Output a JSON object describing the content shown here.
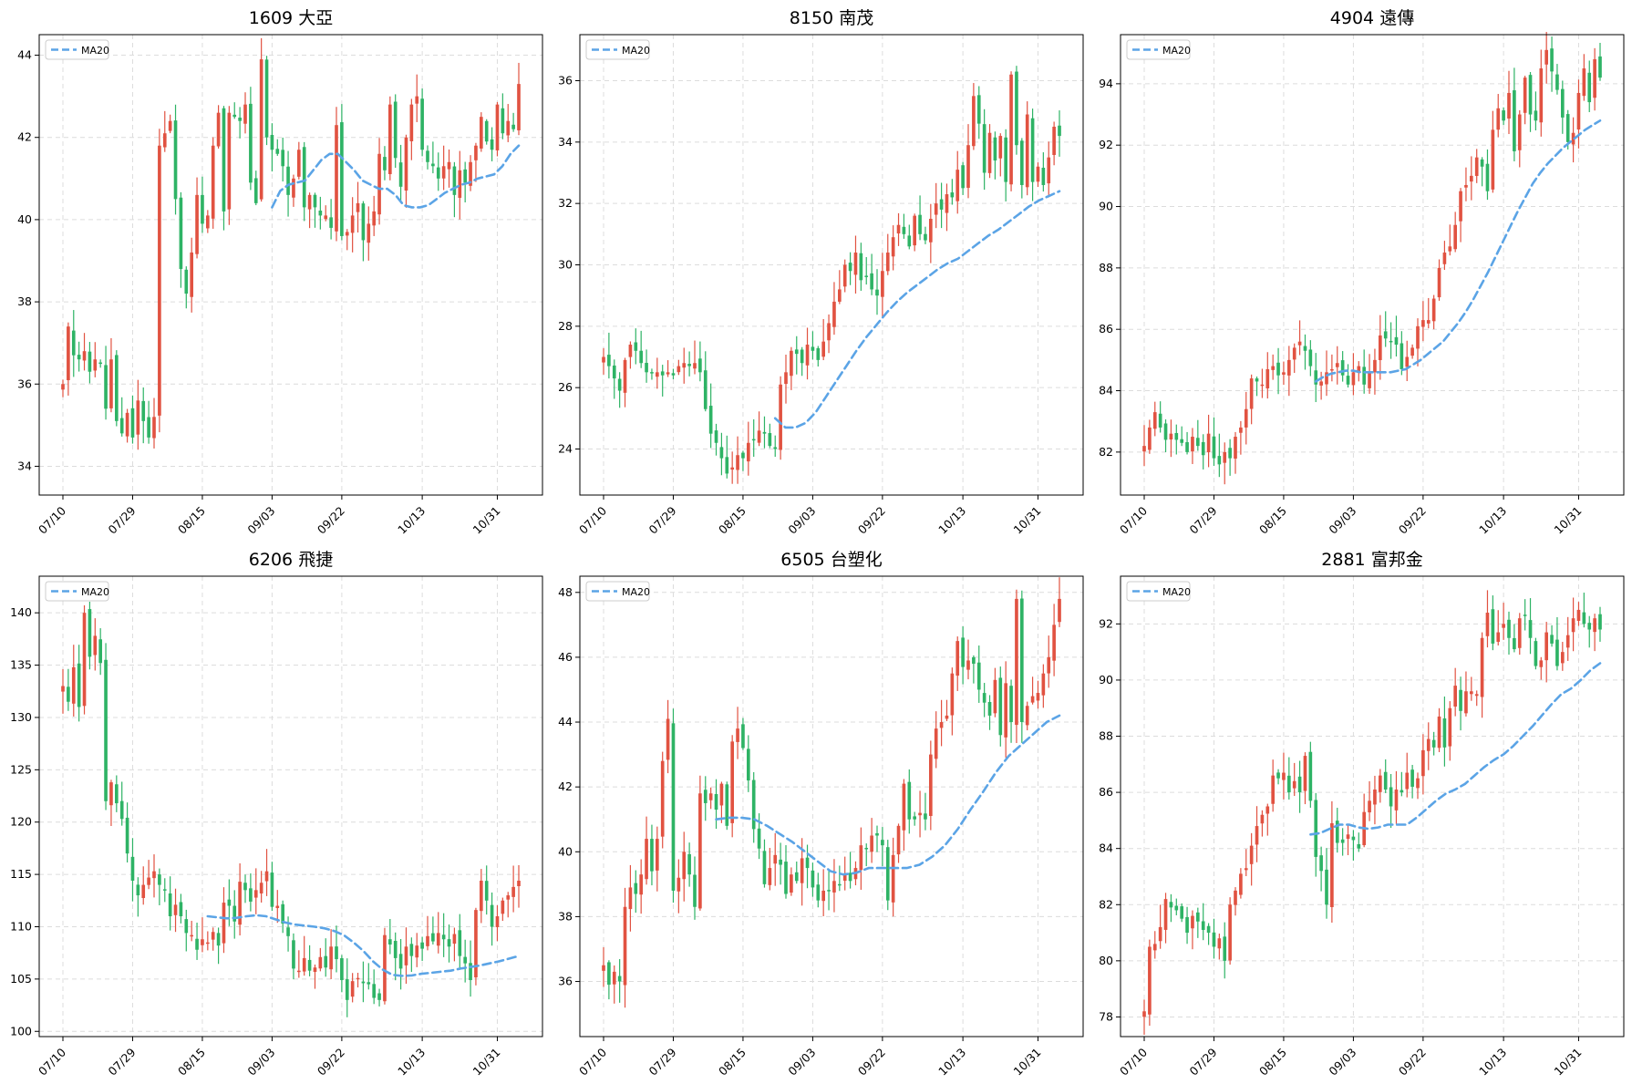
{
  "colors": {
    "up": "#e15241",
    "down": "#2eb365",
    "ma": "#5ba4e6",
    "grid": "#dcdcdc",
    "axis": "#000000"
  },
  "x_dates": [
    "07/10",
    "07/11",
    "07/14",
    "07/15",
    "07/16",
    "07/17",
    "07/18",
    "07/21",
    "07/22",
    "07/23",
    "07/24",
    "07/25",
    "07/28",
    "07/29",
    "07/30",
    "07/31",
    "08/01",
    "08/04",
    "08/05",
    "08/06",
    "08/07",
    "08/08",
    "08/11",
    "08/12",
    "08/13",
    "08/14",
    "08/15",
    "08/18",
    "08/19",
    "08/20",
    "08/21",
    "08/22",
    "08/25",
    "08/26",
    "08/27",
    "08/28",
    "08/29",
    "09/01",
    "09/02",
    "09/03",
    "09/04",
    "09/05",
    "09/08",
    "09/09",
    "09/10",
    "09/11",
    "09/12",
    "09/15",
    "09/16",
    "09/17",
    "09/18",
    "09/19",
    "09/22",
    "09/23",
    "09/24",
    "09/25",
    "09/26",
    "09/29",
    "09/30",
    "10/01",
    "10/02",
    "10/03",
    "10/06",
    "10/07",
    "10/08",
    "10/09",
    "10/10",
    "10/13",
    "10/14",
    "10/15",
    "10/16",
    "10/17",
    "10/20",
    "10/21",
    "10/22",
    "10/23",
    "10/24",
    "10/27",
    "10/28",
    "10/29",
    "10/30",
    "10/31",
    "11/03",
    "11/04",
    "11/05",
    "11/06"
  ],
  "tick_labels": [
    "07/10",
    "07/29",
    "08/15",
    "09/03",
    "09/22",
    "10/13",
    "10/31"
  ],
  "chart_data": [
    {
      "type": "candlestick",
      "title": "1609 大亞",
      "ylim": [
        33.3,
        44.5
      ],
      "yticks": [
        34,
        36,
        38,
        40,
        42,
        44
      ],
      "legend": "MA20",
      "legend_position": "top-left",
      "grid": true,
      "close": [
        36.0,
        37.4,
        36.7,
        36.6,
        36.8,
        36.3,
        36.6,
        36.5,
        35.4,
        36.6,
        35.1,
        34.8,
        35.3,
        34.7,
        35.6,
        35.1,
        34.7,
        35.2,
        41.8,
        42.1,
        42.4,
        40.5,
        38.8,
        38.2,
        39.2,
        40.6,
        39.9,
        40.1,
        41.8,
        42.6,
        40.2,
        42.6,
        42.5,
        42.4,
        42.8,
        40.9,
        40.4,
        43.9,
        42.0,
        41.7,
        41.6,
        41.3,
        40.6,
        41.0,
        41.7,
        40.3,
        40.6,
        40.3,
        40.1,
        40.1,
        39.8,
        42.3,
        39.6,
        39.7,
        40.1,
        40.4,
        39.5,
        39.9,
        40.2,
        41.6,
        41.2,
        42.8,
        41.5,
        40.8,
        42.0,
        42.8,
        43.0,
        41.7,
        41.4,
        41.3,
        41.0,
        41.3,
        41.4,
        40.6,
        41.2,
        40.9,
        41.4,
        41.8,
        42.5,
        41.9,
        41.7,
        42.8,
        42.1,
        42.4,
        42.2,
        43.3
      ],
      "ma20_start_index": 39,
      "ma20": [
        40.3,
        40.7,
        40.85,
        40.9,
        40.95,
        41.2,
        41.45,
        41.6,
        41.6,
        41.4,
        41.2,
        40.95,
        40.85,
        40.75,
        40.75,
        40.6,
        40.35,
        40.3,
        40.3,
        40.35,
        40.5,
        40.65,
        40.75,
        40.85,
        40.9,
        41.0,
        41.05,
        41.1,
        41.3,
        41.6,
        41.8
      ]
    },
    {
      "type": "candlestick",
      "title": "8150 南茂",
      "ylim": [
        22.5,
        37.5
      ],
      "yticks": [
        24,
        26,
        28,
        30,
        32,
        34,
        36
      ],
      "legend": "MA20",
      "legend_position": "top-left",
      "grid": true,
      "close": [
        27.0,
        26.7,
        26.3,
        25.9,
        26.9,
        27.4,
        27.2,
        26.8,
        26.5,
        26.5,
        26.5,
        26.4,
        26.5,
        26.4,
        26.7,
        26.8,
        26.7,
        26.8,
        26.5,
        25.3,
        24.5,
        24.2,
        23.7,
        23.2,
        23.4,
        23.8,
        23.7,
        24.2,
        24.3,
        24.6,
        24.5,
        24.1,
        24.0,
        26.1,
        26.5,
        27.2,
        27.1,
        26.8,
        27.4,
        27.2,
        26.9,
        27.5,
        28.1,
        28.8,
        29.2,
        30.0,
        29.8,
        30.4,
        29.5,
        29.6,
        29.2,
        29.0,
        29.8,
        30.4,
        30.9,
        31.3,
        31.0,
        30.6,
        31.6,
        31.0,
        30.8,
        31.5,
        32.0,
        31.8,
        32.3,
        32.2,
        33.1,
        32.5,
        33.9,
        35.5,
        34.6,
        33.0,
        34.3,
        33.4,
        34.2,
        32.7,
        36.2,
        33.9,
        32.6,
        34.9,
        32.7,
        33.2,
        32.6,
        33.5,
        34.5,
        34.2
      ],
      "ma20_start_index": 32,
      "ma20": [
        25.0,
        24.7,
        24.7,
        24.85,
        25.2,
        25.7,
        26.2,
        26.7,
        27.2,
        27.65,
        28.05,
        28.45,
        28.8,
        29.1,
        29.35,
        29.6,
        29.85,
        30.05,
        30.2,
        30.45,
        30.7,
        30.95,
        31.15,
        31.4,
        31.65,
        31.9,
        32.1,
        32.25,
        32.4
      ]
    },
    {
      "type": "candlestick",
      "title": "4904 遠傳",
      "ylim": [
        80.6,
        95.6
      ],
      "yticks": [
        82,
        84,
        86,
        88,
        90,
        92,
        94
      ],
      "legend": "MA20",
      "legend_position": "top-left",
      "grid": true,
      "close": [
        82.2,
        82.8,
        83.3,
        82.8,
        82.4,
        82.6,
        82.4,
        82.3,
        82.0,
        82.5,
        82.2,
        81.9,
        82.6,
        81.8,
        81.6,
        82.0,
        81.8,
        82.5,
        82.8,
        83.4,
        84.4,
        84.3,
        84.2,
        84.7,
        84.8,
        84.5,
        84.6,
        85.0,
        85.4,
        85.6,
        85.3,
        84.8,
        84.2,
        84.3,
        84.6,
        84.7,
        84.9,
        84.5,
        84.2,
        84.6,
        84.8,
        84.2,
        84.6,
        85.0,
        85.8,
        85.7,
        85.6,
        85.5,
        84.7,
        85.1,
        85.4,
        86.1,
        86.3,
        86.3,
        87.0,
        88.0,
        88.5,
        88.7,
        89.4,
        90.5,
        90.7,
        91.0,
        91.6,
        91.3,
        90.5,
        92.5,
        93.2,
        92.8,
        93.7,
        91.8,
        93.0,
        94.2,
        93.0,
        92.8,
        94.5,
        95.1,
        94.4,
        93.8,
        92.9,
        92.1,
        92.4,
        93.7,
        94.5,
        93.4,
        94.8,
        94.2
      ],
      "ma20_start_index": 32,
      "ma20": [
        84.3,
        84.45,
        84.55,
        84.6,
        84.65,
        84.65,
        84.6,
        84.6,
        84.6,
        84.6,
        84.6,
        84.65,
        84.7,
        84.85,
        85.0,
        85.2,
        85.4,
        85.6,
        85.9,
        86.2,
        86.55,
        86.95,
        87.4,
        87.85,
        88.35,
        88.85,
        89.35,
        89.85,
        90.3,
        90.75,
        91.1,
        91.4,
        91.65,
        91.9,
        92.1,
        92.3,
        92.5,
        92.65,
        92.8
      ]
    },
    {
      "type": "candlestick",
      "title": "6206 飛捷",
      "ylim": [
        99.5,
        143.5
      ],
      "yticks": [
        100,
        105,
        110,
        115,
        120,
        125,
        130,
        135,
        140
      ],
      "legend": "MA20",
      "legend_position": "top-left",
      "grid": true,
      "close": [
        133.0,
        131.5,
        134.8,
        131.0,
        140.0,
        135.8,
        137.8,
        135.2,
        122.0,
        123.8,
        121.8,
        120.3,
        117.0,
        114.4,
        113.0,
        114.0,
        114.7,
        115.3,
        114.0,
        113.5,
        111.0,
        112.1,
        111.0,
        109.4,
        109.2,
        107.8,
        108.8,
        108.5,
        109.5,
        108.2,
        112.3,
        112.0,
        110.5,
        114.3,
        113.5,
        112.4,
        113.5,
        114.2,
        115.3,
        111.9,
        112.0,
        110.3,
        109.1,
        106.0,
        105.8,
        107.0,
        105.8,
        106.1,
        107.1,
        106.1,
        108.1,
        106.9,
        104.9,
        103.0,
        104.8,
        105.1,
        104.6,
        104.5,
        103.2,
        103.0,
        109.2,
        108.3,
        107.0,
        106.0,
        108.1,
        107.2,
        108.2,
        107.9,
        109.1,
        108.6,
        109.4,
        108.8,
        108.1,
        109.3,
        107.2,
        106.5,
        104.9,
        111.6,
        114.4,
        112.5,
        110.0,
        111.0,
        112.5,
        113.0,
        113.8,
        114.4
      ],
      "ma20_start_index": 27,
      "ma20": [
        111.0,
        110.9,
        110.8,
        110.85,
        111.0,
        111.1,
        111.0,
        110.7,
        110.4,
        110.2,
        110.1,
        110.0,
        109.85,
        109.6,
        109.2,
        108.5,
        107.7,
        106.7,
        105.9,
        105.4,
        105.3,
        105.35,
        105.5,
        105.6,
        105.7,
        105.8,
        106.0,
        106.15,
        106.3,
        106.5,
        106.7,
        106.95,
        107.2
      ]
    },
    {
      "type": "candlestick",
      "title": "6505 台塑化",
      "ylim": [
        34.3,
        48.5
      ],
      "yticks": [
        36,
        38,
        40,
        42,
        44,
        46,
        48
      ],
      "legend": "MA20",
      "legend_position": "top-left",
      "grid": true,
      "close": [
        36.5,
        35.9,
        36.3,
        36.0,
        38.3,
        38.9,
        38.7,
        39.3,
        40.4,
        39.4,
        40.4,
        42.8,
        44.1,
        38.8,
        39.2,
        40.0,
        39.3,
        38.3,
        41.8,
        41.5,
        41.8,
        41.3,
        42.1,
        40.8,
        43.4,
        43.8,
        43.2,
        42.2,
        40.7,
        40.1,
        39.0,
        39.5,
        39.9,
        39.6,
        38.7,
        39.3,
        39.1,
        39.8,
        39.5,
        38.9,
        38.5,
        38.8,
        38.8,
        39.1,
        39.0,
        39.3,
        39.1,
        39.5,
        40.2,
        40.1,
        40.5,
        40.5,
        40.2,
        38.5,
        39.9,
        40.8,
        42.1,
        41.0,
        41.0,
        41.2,
        41.0,
        43.0,
        43.8,
        44.0,
        44.2,
        45.5,
        46.5,
        45.7,
        45.9,
        45.8,
        45.0,
        44.6,
        44.2,
        45.3,
        43.6,
        45.2,
        44.0,
        47.8,
        44.0,
        44.5,
        44.8,
        44.9,
        45.5,
        46.0,
        47.0,
        47.8
      ],
      "ma20_start_index": 21,
      "ma20": [
        41.0,
        41.05,
        41.05,
        41.0,
        40.8,
        40.55,
        40.3,
        40.0,
        39.7,
        39.4,
        39.3,
        39.35,
        39.5,
        39.5,
        39.5,
        39.5,
        39.6,
        39.85,
        40.2,
        40.7,
        41.3,
        41.85,
        42.45,
        42.95,
        43.3,
        43.65,
        44.0,
        44.2
      ]
    },
    {
      "type": "candlestick",
      "title": "2881 富邦金",
      "ylim": [
        77.3,
        93.7
      ],
      "yticks": [
        78,
        80,
        82,
        84,
        86,
        88,
        90,
        92
      ],
      "legend": "MA20",
      "legend_position": "top-left",
      "grid": true,
      "close": [
        78.2,
        80.5,
        80.6,
        81.2,
        82.2,
        81.9,
        81.8,
        81.5,
        81.0,
        81.6,
        81.4,
        81.1,
        81.0,
        80.5,
        80.8,
        80.0,
        82.0,
        82.5,
        83.1,
        83.3,
        84.1,
        84.8,
        85.2,
        85.5,
        86.6,
        86.5,
        86.7,
        86.0,
        86.4,
        86.0,
        87.3,
        85.7,
        83.7,
        83.2,
        82.0,
        84.9,
        84.2,
        84.2,
        84.5,
        84.3,
        84.0,
        85.3,
        85.7,
        86.1,
        86.6,
        86.1,
        85.5,
        86.1,
        86.0,
        86.7,
        86.2,
        86.5,
        87.5,
        87.9,
        87.6,
        88.7,
        87.6,
        89.0,
        89.8,
        88.9,
        89.6,
        89.6,
        89.5,
        91.5,
        92.4,
        91.3,
        91.7,
        92.0,
        91.5,
        91.1,
        92.2,
        92.3,
        91.5,
        90.5,
        90.7,
        91.7,
        91.3,
        90.5,
        91.0,
        91.6,
        92.2,
        92.5,
        92.0,
        91.8,
        92.2,
        91.8
      ],
      "ma20_start_index": 31,
      "ma20": [
        84.5,
        84.55,
        84.7,
        84.85,
        84.85,
        84.75,
        84.7,
        84.75,
        84.85,
        84.85,
        84.85,
        85.1,
        85.4,
        85.7,
        85.95,
        86.1,
        86.3,
        86.6,
        86.9,
        87.15,
        87.35,
        87.65,
        88.0,
        88.35,
        88.75,
        89.15,
        89.5,
        89.7,
        90.0,
        90.35,
        90.6
      ]
    }
  ]
}
